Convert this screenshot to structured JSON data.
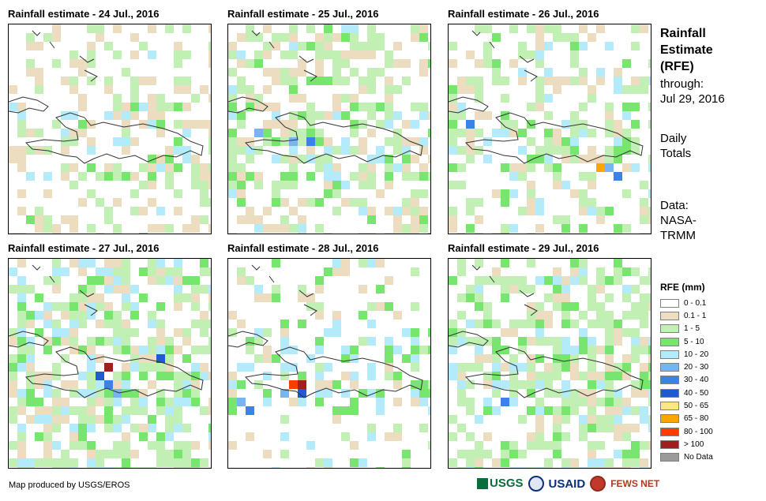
{
  "panels": [
    {
      "title": "Rainfall estimate - 24 Jul., 2016"
    },
    {
      "title": "Rainfall estimate - 25 Jul., 2016"
    },
    {
      "title": "Rainfall estimate - 26 Jul., 2016"
    },
    {
      "title": "Rainfall estimate - 27 Jul., 2016"
    },
    {
      "title": "Rainfall estimate - 28 Jul., 2016"
    },
    {
      "title": "Rainfall estimate - 29 Jul., 2016"
    }
  ],
  "side": {
    "title_lines": [
      "Rainfall",
      "Estimate",
      "(RFE)"
    ],
    "through": "through:",
    "date": "Jul 29, 2016",
    "daily_1": "Daily",
    "daily_2": "Totals",
    "data_1": "Data:",
    "data_2": "NASA-",
    "data_3": "TRMM"
  },
  "legend": {
    "title": "RFE (mm)",
    "items": [
      {
        "label": "0 - 0.1",
        "color": "#ffffff"
      },
      {
        "label": "0.1 - 1",
        "color": "#ecdcc0"
      },
      {
        "label": "1 - 5",
        "color": "#c2f0b4"
      },
      {
        "label": "5 - 10",
        "color": "#78e66e"
      },
      {
        "label": "10 - 20",
        "color": "#b4ebfa"
      },
      {
        "label": "20 - 30",
        "color": "#78b4f0"
      },
      {
        "label": "30 - 40",
        "color": "#3c82e6"
      },
      {
        "label": "40 - 50",
        "color": "#1e5ad2"
      },
      {
        "label": "50 - 65",
        "color": "#ffe682"
      },
      {
        "label": "65 - 80",
        "color": "#ffa500"
      },
      {
        "label": "80 - 100",
        "color": "#ff3c00"
      },
      {
        "label": "> 100",
        "color": "#a01e1e"
      },
      {
        "label": "No Data",
        "color": "#9a9a9a"
      }
    ]
  },
  "credit": "Map produced by USGS/EROS",
  "logos": {
    "usgs": "USGS",
    "usaid": "USAID",
    "fews": "FEWS NET"
  }
}
